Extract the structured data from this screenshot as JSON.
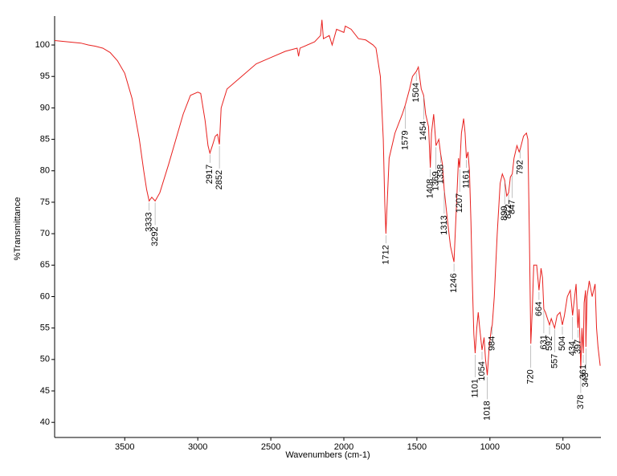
{
  "chart_data": {
    "type": "line",
    "xlabel": "Wavenumbers (cm-1)",
    "ylabel": "%Transmittance",
    "xlim": [
      3980,
      240
    ],
    "ylim": [
      37.6,
      104.6
    ],
    "xticks": [
      3500,
      3000,
      2500,
      2000,
      1500,
      1000,
      500
    ],
    "yticks": [
      40,
      45,
      50,
      55,
      60,
      65,
      70,
      75,
      80,
      85,
      90,
      95,
      100
    ],
    "x": [
      3980,
      3800,
      3750,
      3700,
      3650,
      3600,
      3550,
      3500,
      3450,
      3400,
      3370,
      3350,
      3333,
      3315,
      3292,
      3260,
      3200,
      3150,
      3100,
      3050,
      3000,
      2980,
      2950,
      2930,
      2917,
      2900,
      2880,
      2865,
      2852,
      2840,
      2800,
      2700,
      2600,
      2500,
      2400,
      2320,
      2310,
      2300,
      2200,
      2160,
      2150,
      2140,
      2100,
      2080,
      2050,
      2000,
      1990,
      1950,
      1900,
      1850,
      1800,
      1780,
      1750,
      1730,
      1720,
      1712,
      1705,
      1690,
      1650,
      1600,
      1579,
      1550,
      1530,
      1504,
      1490,
      1470,
      1454,
      1440,
      1420,
      1408,
      1400,
      1385,
      1369,
      1350,
      1338,
      1325,
      1313,
      1290,
      1270,
      1246,
      1230,
      1215,
      1207,
      1195,
      1180,
      1170,
      1161,
      1150,
      1140,
      1130,
      1120,
      1110,
      1101,
      1090,
      1080,
      1070,
      1054,
      1040,
      1030,
      1018,
      1005,
      990,
      984,
      970,
      950,
      930,
      915,
      899,
      885,
      872,
      860,
      847,
      835,
      815,
      800,
      792,
      770,
      750,
      740,
      730,
      720,
      710,
      700,
      680,
      664,
      650,
      640,
      631,
      620,
      592,
      580,
      557,
      540,
      520,
      504,
      490,
      470,
      450,
      434,
      420,
      410,
      400,
      397,
      390,
      378,
      370,
      361,
      355,
      345,
      343,
      335,
      320,
      300,
      280,
      270,
      260,
      245
    ],
    "series": [
      {
        "name": "Transmittance",
        "color": "#e8201e",
        "values": [
          100.7,
          100.3,
          100.0,
          99.8,
          99.5,
          98.8,
          97.5,
          95.5,
          91.5,
          85,
          80,
          77,
          75.2,
          75.8,
          75.2,
          76.5,
          81,
          85,
          89,
          92,
          92.5,
          92.3,
          88,
          84,
          82.8,
          84,
          85.5,
          85.8,
          84.2,
          90,
          93,
          95,
          97,
          98,
          99,
          99.5,
          98.2,
          99.5,
          100.5,
          101.5,
          104,
          101,
          101.5,
          100,
          102.5,
          102,
          103,
          102.5,
          101,
          100.8,
          100,
          99.5,
          95,
          85,
          75,
          70,
          74,
          82,
          86,
          89,
          90.5,
          93,
          95,
          95.8,
          96.5,
          93,
          92,
          89,
          87,
          80.5,
          86,
          89,
          84,
          85,
          82.8,
          81,
          77,
          72,
          68,
          65.5,
          74,
          82,
          80.5,
          86,
          88.3,
          86,
          82,
          83,
          80,
          72,
          62,
          54,
          51,
          55,
          57.5,
          55,
          51.5,
          53.5,
          50,
          47.5,
          52,
          55,
          55.5,
          60,
          70,
          78,
          79.5,
          78.5,
          76,
          76.5,
          79,
          79.5,
          82,
          84,
          83,
          83.5,
          85.5,
          86,
          85,
          70,
          52.5,
          58,
          65,
          65,
          61,
          64.5,
          63,
          58,
          57.5,
          55.5,
          56.5,
          55,
          57,
          57.5,
          55.5,
          57,
          60,
          61,
          57,
          60,
          62,
          56,
          55,
          58,
          48.5,
          55,
          51,
          59,
          61,
          52,
          60,
          62.5,
          60,
          62,
          55,
          52,
          49
        ]
      }
    ],
    "peaks": [
      3333,
      3292,
      2917,
      2852,
      1712,
      1579,
      1504,
      1454,
      1408,
      1369,
      1338,
      1313,
      1246,
      1207,
      1161,
      1101,
      1054,
      1018,
      984,
      899,
      872,
      847,
      792,
      720,
      664,
      631,
      592,
      557,
      504,
      434,
      397,
      378,
      361,
      343
    ]
  }
}
